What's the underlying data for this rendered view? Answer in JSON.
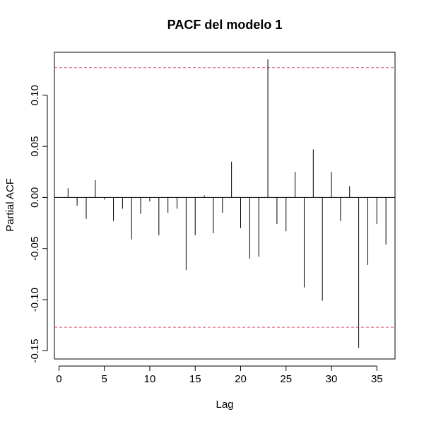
{
  "chart_data": {
    "type": "bar",
    "title": "PACF del modelo 1",
    "xlabel": "Lag",
    "ylabel": "Partial ACF",
    "xlim": [
      -0.5,
      37
    ],
    "ylim": [
      -0.158,
      0.142
    ],
    "x_ticks": [
      0,
      5,
      10,
      15,
      20,
      25,
      30,
      35
    ],
    "x_tick_labels": [
      "0",
      "5",
      "10",
      "15",
      "20",
      "25",
      "30",
      "35"
    ],
    "y_ticks": [
      -0.15,
      -0.1,
      -0.05,
      0.0,
      0.05,
      0.1
    ],
    "y_tick_labels": [
      "-0.15",
      "-0.10",
      "-0.05",
      "0.00",
      "0.05",
      "0.10"
    ],
    "confidence_limits": [
      0.127,
      -0.127
    ],
    "confidence_line_color": "#df536b",
    "lags": [
      1,
      2,
      3,
      4,
      5,
      6,
      7,
      8,
      9,
      10,
      11,
      12,
      13,
      14,
      15,
      16,
      17,
      18,
      19,
      20,
      21,
      22,
      23,
      24,
      25,
      26,
      27,
      28,
      29,
      30,
      31,
      32,
      33,
      34,
      35,
      36
    ],
    "values": [
      0.009,
      -0.008,
      -0.021,
      0.017,
      -0.002,
      -0.023,
      -0.011,
      -0.041,
      -0.016,
      -0.004,
      -0.037,
      -0.015,
      -0.011,
      -0.071,
      -0.037,
      0.002,
      -0.035,
      -0.015,
      0.035,
      -0.03,
      -0.06,
      -0.058,
      0.135,
      -0.026,
      -0.033,
      0.025,
      -0.088,
      0.047,
      -0.101,
      0.025,
      -0.023,
      0.011,
      -0.147,
      -0.066,
      -0.026,
      -0.046
    ],
    "grid": false
  }
}
